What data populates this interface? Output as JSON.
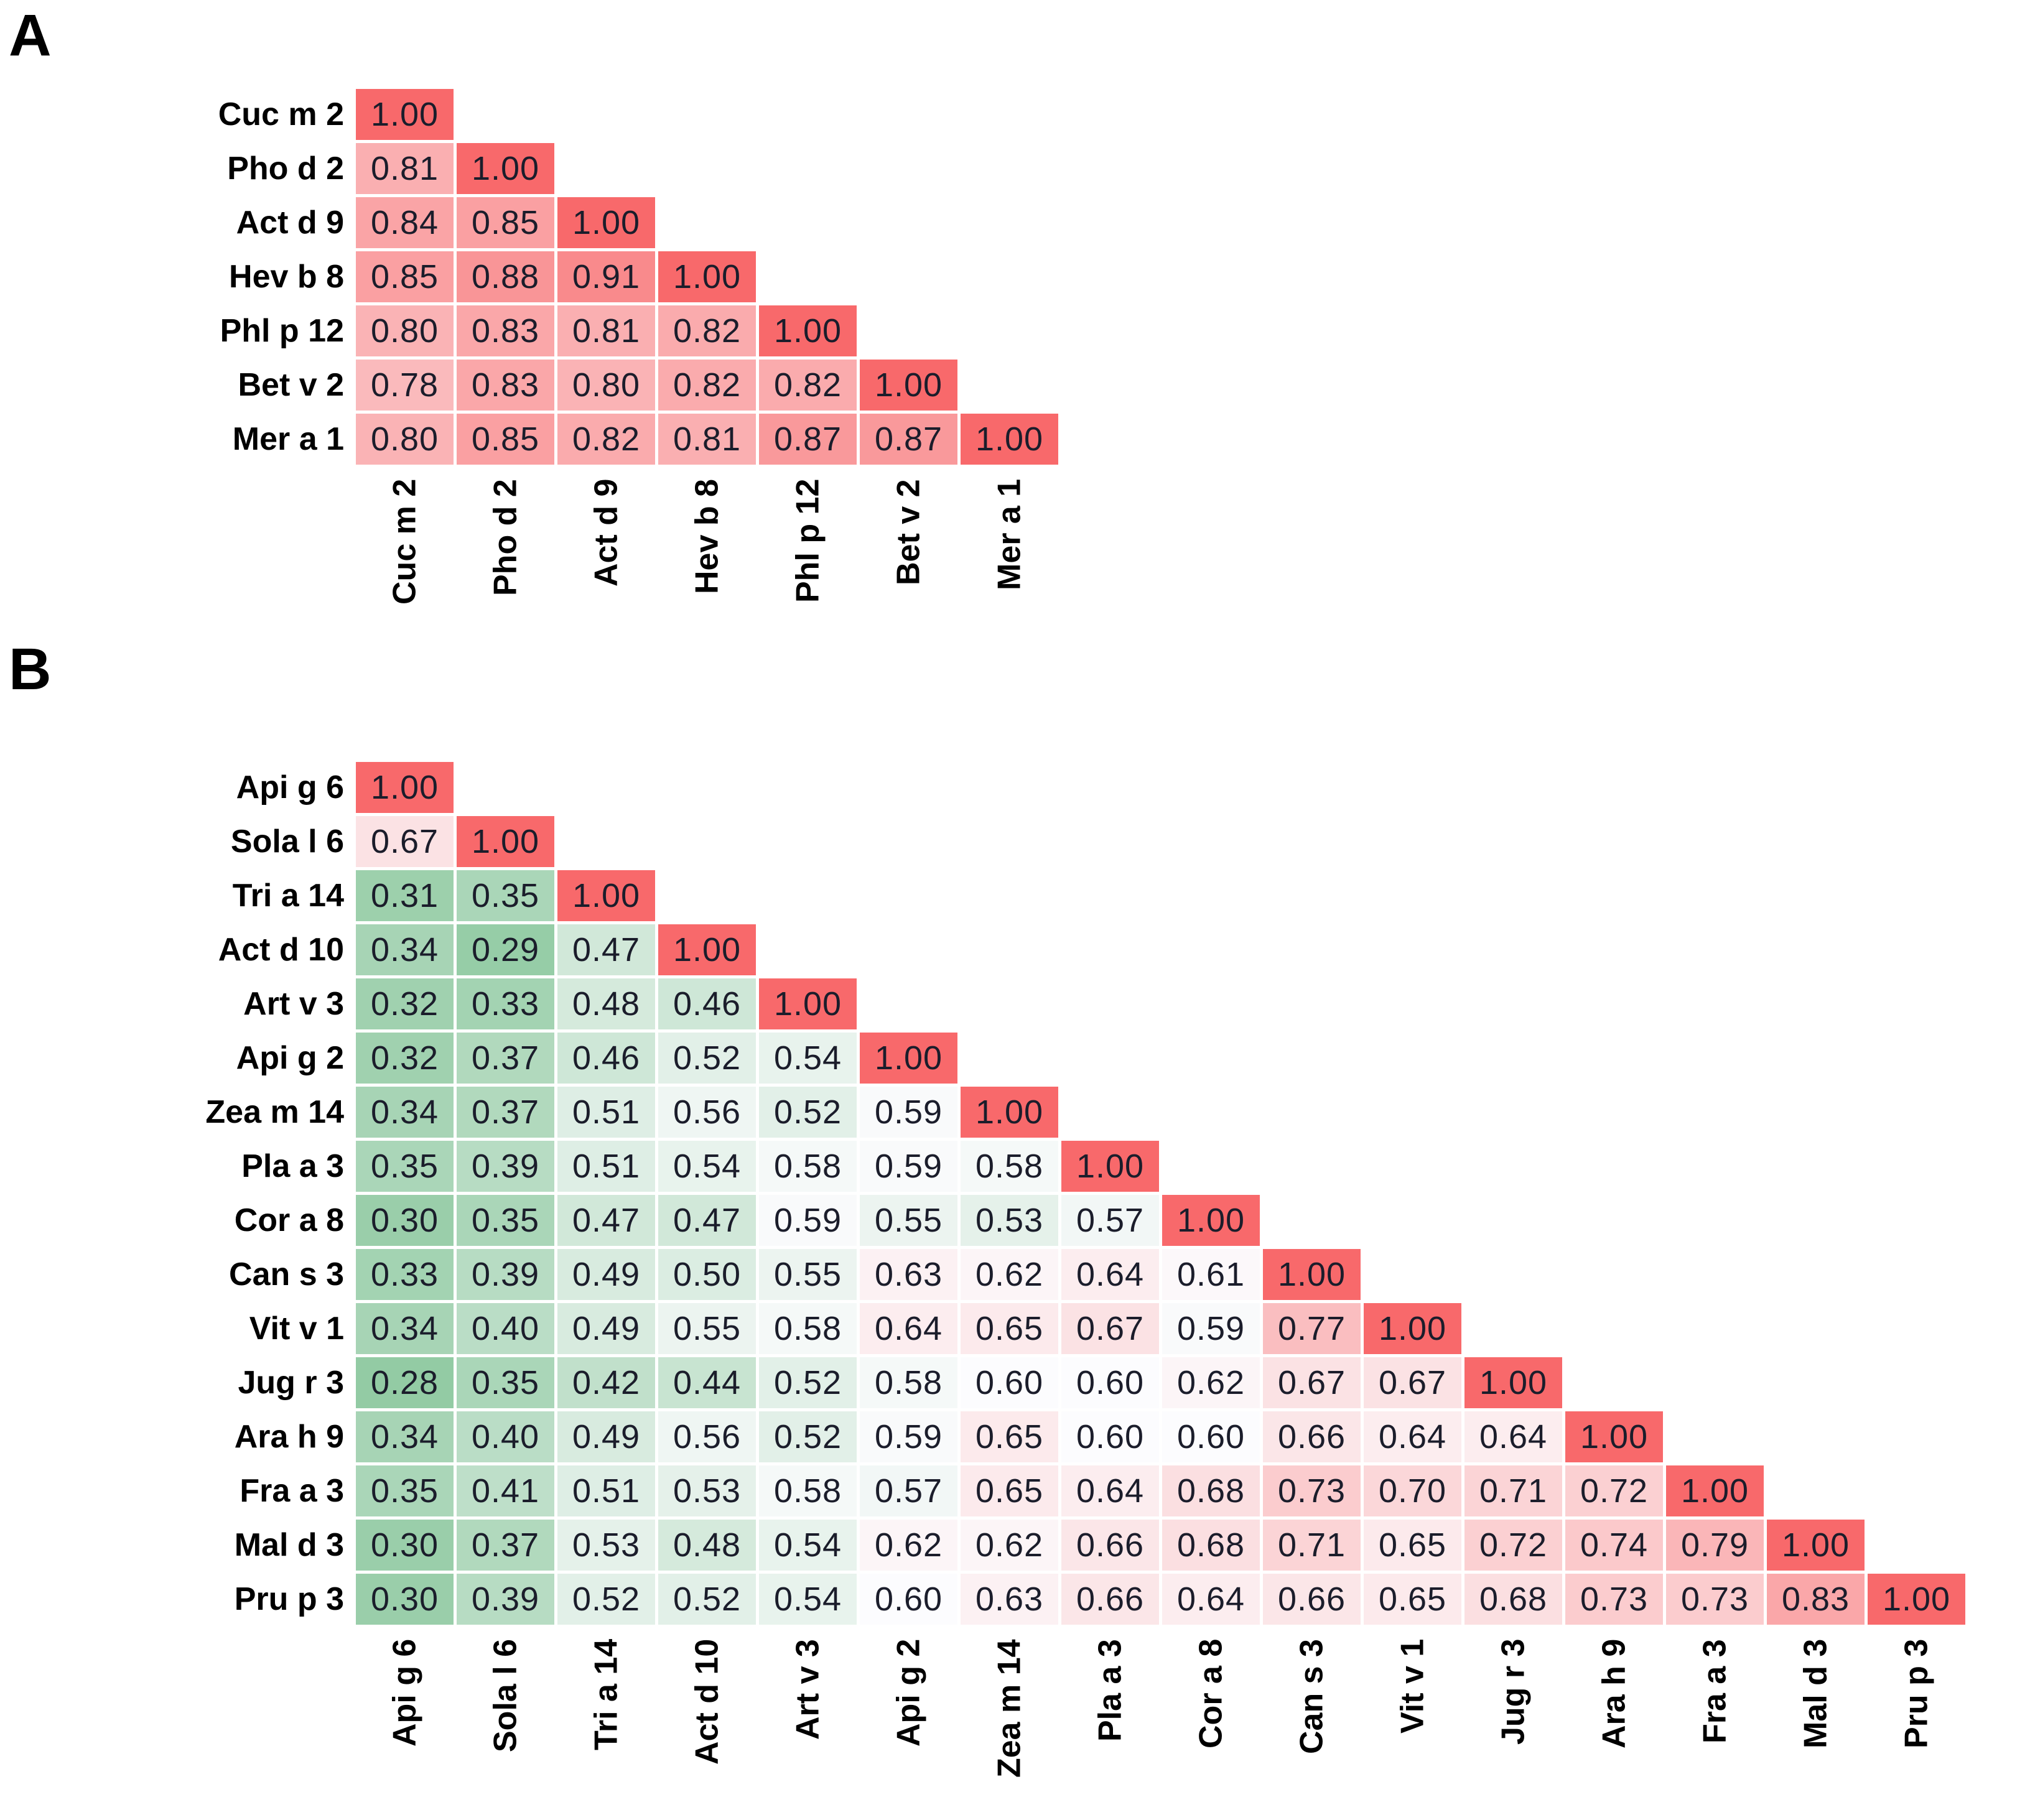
{
  "figure": {
    "panel_a_letter": "A",
    "panel_b_letter": "B"
  },
  "color_scale": {
    "min": 0.28,
    "mid": 0.6,
    "max": 1.0,
    "green_hex": "#93cba4",
    "white_hex": "#fcfcfe",
    "red_hex": "#f8696b",
    "value_text_color": "#1b1d2b",
    "label_text_color": "#000000"
  },
  "chart_data": [
    {
      "type": "heatmap",
      "panel": "A",
      "shape": "lower-triangle",
      "legend_position": "none",
      "grid": false,
      "labels": [
        "Cuc m 2",
        "Pho d 2",
        "Act d 9",
        "Hev b 8",
        "Phl p 12",
        "Bet v 2",
        "Mer a 1"
      ],
      "matrix": [
        [
          1.0
        ],
        [
          0.81,
          1.0
        ],
        [
          0.84,
          0.85,
          1.0
        ],
        [
          0.85,
          0.88,
          0.91,
          1.0
        ],
        [
          0.8,
          0.83,
          0.81,
          0.82,
          1.0
        ],
        [
          0.78,
          0.83,
          0.8,
          0.82,
          0.82,
          1.0
        ],
        [
          0.8,
          0.85,
          0.82,
          0.81,
          0.87,
          0.87,
          1.0
        ]
      ]
    },
    {
      "type": "heatmap",
      "panel": "B",
      "shape": "lower-triangle",
      "legend_position": "none",
      "grid": false,
      "labels": [
        "Api g 6",
        "Sola l 6",
        "Tri a 14",
        "Act d 10",
        "Art v 3",
        "Api g 2",
        "Zea m 14",
        "Pla a 3",
        "Cor a 8",
        "Can s 3",
        "Vit v 1",
        "Jug r 3",
        "Ara h 9",
        "Fra a 3",
        "Mal d 3",
        "Pru p 3"
      ],
      "matrix": [
        [
          1.0
        ],
        [
          0.67,
          1.0
        ],
        [
          0.31,
          0.35,
          1.0
        ],
        [
          0.34,
          0.29,
          0.47,
          1.0
        ],
        [
          0.32,
          0.33,
          0.48,
          0.46,
          1.0
        ],
        [
          0.32,
          0.37,
          0.46,
          0.52,
          0.54,
          1.0
        ],
        [
          0.34,
          0.37,
          0.51,
          0.56,
          0.52,
          0.59,
          1.0
        ],
        [
          0.35,
          0.39,
          0.51,
          0.54,
          0.58,
          0.59,
          0.58,
          1.0
        ],
        [
          0.3,
          0.35,
          0.47,
          0.47,
          0.59,
          0.55,
          0.53,
          0.57,
          1.0
        ],
        [
          0.33,
          0.39,
          0.49,
          0.5,
          0.55,
          0.63,
          0.62,
          0.64,
          0.61,
          1.0
        ],
        [
          0.34,
          0.4,
          0.49,
          0.55,
          0.58,
          0.64,
          0.65,
          0.67,
          0.59,
          0.77,
          1.0
        ],
        [
          0.28,
          0.35,
          0.42,
          0.44,
          0.52,
          0.58,
          0.6,
          0.6,
          0.62,
          0.67,
          0.67,
          1.0
        ],
        [
          0.34,
          0.4,
          0.49,
          0.56,
          0.52,
          0.59,
          0.65,
          0.6,
          0.6,
          0.66,
          0.64,
          0.64,
          1.0
        ],
        [
          0.35,
          0.41,
          0.51,
          0.53,
          0.58,
          0.57,
          0.65,
          0.64,
          0.68,
          0.73,
          0.7,
          0.71,
          0.72,
          1.0
        ],
        [
          0.3,
          0.37,
          0.53,
          0.48,
          0.54,
          0.62,
          0.62,
          0.66,
          0.68,
          0.71,
          0.65,
          0.72,
          0.74,
          0.79,
          1.0
        ],
        [
          0.3,
          0.39,
          0.52,
          0.52,
          0.54,
          0.6,
          0.63,
          0.66,
          0.64,
          0.66,
          0.65,
          0.68,
          0.73,
          0.73,
          0.83,
          1.0
        ]
      ]
    }
  ]
}
